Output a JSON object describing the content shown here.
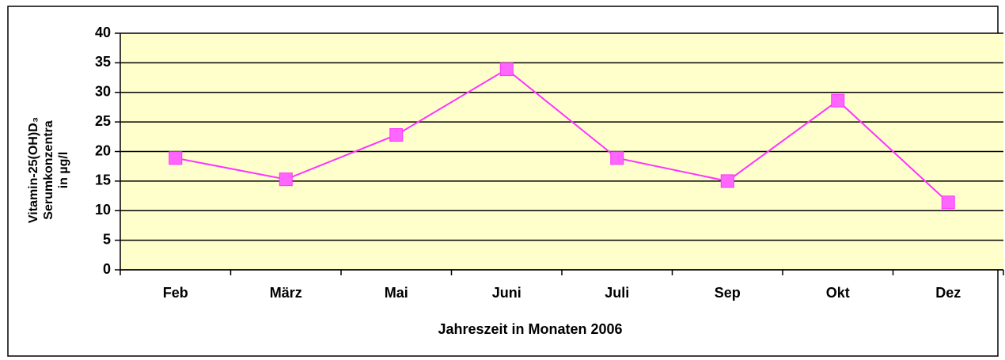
{
  "chart_data": {
    "type": "line",
    "xlabel": "Jahreszeit in Monaten 2006",
    "ylabel": [
      "Vitamin-25(OH)D₃",
      "Serumkonzentra",
      "in µg/l"
    ],
    "categories": [
      "Feb",
      "März",
      "Mai",
      "Juni",
      "Juli",
      "Sep",
      "Okt",
      "Dez"
    ],
    "series": [
      {
        "name": "Vitamin-25(OH)D₃",
        "color": "#ff33ff",
        "marker_color": "#ff66ff",
        "values": [
          18.9,
          15.3,
          22.8,
          33.9,
          18.9,
          15.0,
          28.6,
          11.4
        ]
      }
    ],
    "ylim": [
      0,
      40
    ],
    "yticks": [
      0,
      5,
      10,
      15,
      20,
      25,
      30,
      35,
      40
    ],
    "grid": true,
    "plot_background": "#ffffcc"
  }
}
